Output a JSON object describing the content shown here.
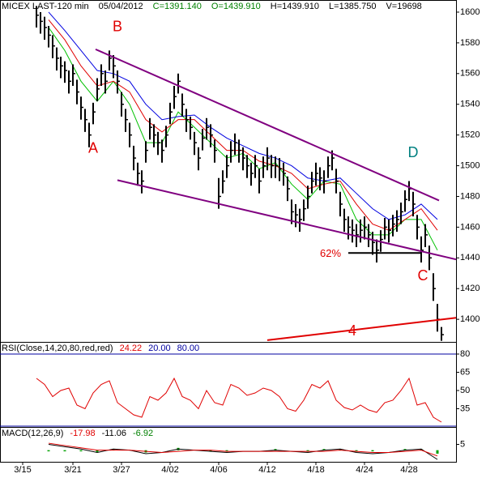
{
  "header": [
    {
      "text": "MICEX LAST-120 min",
      "color": "#000000"
    },
    {
      "text": "05/04/2012",
      "color": "#000000"
    },
    {
      "text": "C=1391.140",
      "color": "#008000"
    },
    {
      "text": "O=1439.910",
      "color": "#008000"
    },
    {
      "text": "H=1439.910",
      "color": "#000000"
    },
    {
      "text": "L=1385.750",
      "color": "#000000"
    },
    {
      "text": "V=19698",
      "color": "#000000"
    }
  ],
  "chart_data": [
    {
      "type": "hlc",
      "xlim": [
        0,
        112.6
      ],
      "ylim": [
        1385.3,
        1607.9
      ],
      "yticks": [
        1400,
        1420,
        1440,
        1460,
        1480,
        1500,
        1520,
        1540,
        1560,
        1580,
        1600
      ],
      "bar_color": "#000000",
      "x": [
        9,
        10,
        11,
        12,
        13,
        14,
        15,
        16,
        17,
        18,
        19,
        20,
        21,
        22,
        23,
        24,
        25,
        26,
        27,
        28,
        29,
        30,
        31,
        32,
        33,
        34,
        35,
        36,
        37,
        38,
        39,
        40,
        41,
        42,
        43,
        44,
        45,
        46,
        47,
        48,
        49,
        50,
        51,
        52,
        53,
        54,
        55,
        56,
        57,
        58,
        59,
        60,
        61,
        62,
        63,
        64,
        65,
        66,
        67,
        68,
        69,
        70,
        71,
        72,
        73,
        74,
        75,
        76,
        77,
        78,
        79,
        80,
        81,
        82,
        83,
        84,
        85,
        86,
        87,
        88,
        89,
        90,
        91,
        92,
        93,
        94,
        95,
        96,
        97,
        98,
        99,
        100,
        101,
        102,
        103,
        104,
        105,
        106,
        107,
        108,
        109
      ],
      "high": [
        1604,
        1600,
        1597,
        1591,
        1585,
        1577,
        1571,
        1568,
        1562,
        1566,
        1556,
        1545,
        1537,
        1528,
        1541,
        1557,
        1566,
        1562,
        1575,
        1572,
        1562,
        1548,
        1537,
        1528,
        1513,
        1502,
        1497,
        1516,
        1531,
        1527,
        1522,
        1517,
        1526,
        1541,
        1552,
        1560,
        1547,
        1537,
        1532,
        1522,
        1512,
        1524,
        1531,
        1527,
        1517,
        1492,
        1497,
        1507,
        1516,
        1521,
        1517,
        1512,
        1507,
        1502,
        1507,
        1498,
        1506,
        1512,
        1507,
        1506,
        1505,
        1502,
        1493,
        1478,
        1475,
        1472,
        1478,
        1487,
        1496,
        1502,
        1499,
        1497,
        1506,
        1510,
        1498,
        1483,
        1472,
        1467,
        1465,
        1462,
        1465,
        1467,
        1462,
        1457,
        1452,
        1458,
        1466,
        1465,
        1468,
        1471,
        1476,
        1484,
        1490,
        1483,
        1468,
        1454,
        1462,
        1448,
        1430,
        1410,
        1395
      ],
      "low": [
        1590,
        1586,
        1582,
        1577,
        1570,
        1562,
        1557,
        1554,
        1547,
        1552,
        1540,
        1530,
        1522,
        1512,
        1527,
        1542,
        1552,
        1547,
        1562,
        1557,
        1547,
        1532,
        1522,
        1512,
        1497,
        1487,
        1482,
        1502,
        1517,
        1512,
        1507,
        1502,
        1512,
        1527,
        1537,
        1547,
        1532,
        1522,
        1517,
        1507,
        1497,
        1510,
        1517,
        1512,
        1502,
        1472,
        1482,
        1492,
        1502,
        1507,
        1502,
        1497,
        1492,
        1487,
        1492,
        1482,
        1492,
        1497,
        1492,
        1492,
        1490,
        1487,
        1477,
        1462,
        1460,
        1457,
        1464,
        1472,
        1482,
        1487,
        1484,
        1482,
        1492,
        1497,
        1482,
        1467,
        1457,
        1452,
        1450,
        1447,
        1450,
        1452,
        1447,
        1442,
        1437,
        1444,
        1452,
        1450,
        1454,
        1457,
        1462,
        1470,
        1477,
        1467,
        1452,
        1437,
        1447,
        1432,
        1412,
        1392,
        1386
      ],
      "close": [
        1598,
        1594,
        1590,
        1585,
        1578,
        1570,
        1565,
        1562,
        1555,
        1560,
        1548,
        1538,
        1530,
        1520,
        1535,
        1550,
        1560,
        1555,
        1570,
        1565,
        1555,
        1540,
        1530,
        1520,
        1505,
        1495,
        1490,
        1510,
        1525,
        1520,
        1515,
        1510,
        1520,
        1535,
        1545,
        1555,
        1540,
        1530,
        1525,
        1515,
        1505,
        1518,
        1525,
        1520,
        1510,
        1480,
        1490,
        1500,
        1510,
        1515,
        1510,
        1505,
        1500,
        1495,
        1500,
        1490,
        1500,
        1505,
        1500,
        1500,
        1498,
        1495,
        1485,
        1470,
        1468,
        1465,
        1472,
        1480,
        1490,
        1495,
        1492,
        1490,
        1500,
        1505,
        1490,
        1475,
        1465,
        1460,
        1458,
        1455,
        1458,
        1460,
        1455,
        1450,
        1445,
        1452,
        1460,
        1458,
        1462,
        1465,
        1470,
        1478,
        1485,
        1475,
        1460,
        1445,
        1455,
        1440,
        1420,
        1400,
        1390
      ],
      "ma": [
        {
          "color": "#00c000",
          "x": [
            12,
            16,
            20,
            24,
            28,
            32,
            36,
            40,
            44,
            48,
            52,
            56,
            60,
            64,
            68,
            72,
            76,
            80,
            84,
            88,
            92,
            96,
            100,
            104,
            108
          ],
          "values": [
            1590,
            1575,
            1555,
            1542,
            1555,
            1540,
            1515,
            1515,
            1535,
            1525,
            1515,
            1505,
            1508,
            1498,
            1502,
            1488,
            1478,
            1490,
            1488,
            1465,
            1455,
            1455,
            1465,
            1465,
            1445
          ]
        },
        {
          "color": "#e00000",
          "x": [
            12,
            16,
            20,
            24,
            28,
            32,
            36,
            40,
            44,
            48,
            52,
            56,
            60,
            64,
            68,
            72,
            76,
            80,
            84,
            88,
            92,
            96,
            100,
            104,
            108
          ],
          "values": [
            1595,
            1582,
            1565,
            1552,
            1555,
            1548,
            1530,
            1522,
            1530,
            1530,
            1520,
            1510,
            1510,
            1503,
            1500,
            1495,
            1485,
            1488,
            1490,
            1475,
            1462,
            1458,
            1465,
            1472,
            1458
          ]
        },
        {
          "color": "#0000e0",
          "x": [
            12,
            16,
            20,
            24,
            28,
            32,
            36,
            40,
            44,
            48,
            52,
            56,
            60,
            64,
            68,
            72,
            76,
            80,
            84,
            88,
            92,
            96,
            100,
            104,
            108
          ],
          "values": [
            1600,
            1588,
            1575,
            1562,
            1560,
            1555,
            1540,
            1530,
            1532,
            1533,
            1525,
            1518,
            1513,
            1508,
            1505,
            1500,
            1492,
            1490,
            1492,
            1482,
            1472,
            1465,
            1468,
            1475,
            1465
          ]
        }
      ],
      "trendlines": [
        {
          "color": "#800080",
          "x": [
            23.6,
            108.4
          ],
          "y": [
            1575.8,
            1477.4
          ]
        },
        {
          "color": "#800080",
          "x": [
            29,
            112.6
          ],
          "y": [
            1490.6,
            1439
          ]
        },
        {
          "color": "#e00000",
          "x": [
            66,
            112.6
          ],
          "y": [
            1386.4,
            1401
          ]
        },
        {
          "color": "#000000",
          "x": [
            86,
            104
          ],
          "y": [
            1443.2,
            1443.2
          ]
        }
      ],
      "annotations": [
        {
          "text": "B",
          "x": 29,
          "y": 1590,
          "color": "#e00000",
          "size": 18
        },
        {
          "text": "A",
          "x": 23,
          "y": 1511,
          "color": "#e00000",
          "size": 18
        },
        {
          "text": "D",
          "x": 102,
          "y": 1508,
          "color": "#008080",
          "size": 18
        },
        {
          "text": "C",
          "x": 104.4,
          "y": 1428,
          "color": "#e00000",
          "size": 18
        },
        {
          "text": "4",
          "x": 87,
          "y": 1392,
          "color": "#e00000",
          "size": 18
        },
        {
          "text": "62%",
          "x": 81.6,
          "y": 1442.6,
          "color": "#e00000",
          "size": 13
        }
      ]
    },
    {
      "type": "line",
      "title": [
        {
          "text": "RSI(Close,14,20,80,red,red)",
          "color": "#000000"
        },
        {
          "text": "24.22",
          "color": "#e00000"
        },
        {
          "text": "20.00",
          "color": "#0000a0"
        },
        {
          "text": "80.00",
          "color": "#0000a0"
        }
      ],
      "xlim": [
        0,
        112.6
      ],
      "ylim": [
        20,
        90
      ],
      "yticks": [
        35,
        50,
        65,
        80
      ],
      "levels": [
        80,
        20
      ],
      "level_color": "#0000a0",
      "series": [
        {
          "color": "#e00000",
          "x": [
            9,
            11,
            13,
            15,
            17,
            19,
            21,
            23,
            25,
            27,
            29,
            31,
            33,
            35,
            37,
            39,
            41,
            43,
            45,
            47,
            49,
            51,
            53,
            55,
            57,
            59,
            61,
            63,
            65,
            67,
            69,
            71,
            73,
            75,
            77,
            79,
            81,
            83,
            85,
            87,
            89,
            91,
            93,
            95,
            97,
            99,
            101,
            103,
            105,
            107,
            109
          ],
          "values": [
            60,
            55,
            45,
            50,
            52,
            38,
            35,
            48,
            55,
            58,
            40,
            35,
            30,
            28,
            45,
            42,
            48,
            60,
            45,
            42,
            35,
            50,
            40,
            38,
            55,
            52,
            46,
            48,
            52,
            50,
            45,
            35,
            33,
            42,
            55,
            52,
            58,
            42,
            36,
            34,
            38,
            34,
            32,
            40,
            42,
            50,
            60,
            38,
            40,
            28,
            24
          ]
        }
      ]
    },
    {
      "type": "macd",
      "title": [
        {
          "text": "MACD(12,26,9)",
          "color": "#000000"
        },
        {
          "text": "-17.98",
          "color": "#e00000"
        },
        {
          "text": "-11.06",
          "color": "#000000"
        },
        {
          "text": "-6.92",
          "color": "#008000"
        }
      ],
      "xlim": [
        0,
        112.6
      ],
      "ylim": [
        -10,
        20
      ],
      "yticks": [
        5
      ],
      "xticks": [
        {
          "value": 5.6,
          "label": "3/15"
        },
        {
          "value": 18,
          "label": "3/21"
        },
        {
          "value": 30,
          "label": "3/27"
        },
        {
          "value": 42,
          "label": "4/02"
        },
        {
          "value": 54,
          "label": "4/06"
        },
        {
          "value": 66,
          "label": "4/12"
        },
        {
          "value": 78,
          "label": "4/18"
        },
        {
          "value": 90,
          "label": "4/24"
        },
        {
          "value": 101,
          "label": "4/28"
        }
      ],
      "x": [
        12,
        16,
        20,
        24,
        28,
        32,
        36,
        40,
        44,
        48,
        52,
        56,
        60,
        64,
        68,
        72,
        76,
        80,
        84,
        88,
        92,
        96,
        100,
        104,
        108
      ],
      "histogram": {
        "color": "#00a000",
        "values": [
          -1,
          -1,
          -1,
          -2,
          1,
          0,
          -2,
          0,
          2,
          0,
          -1,
          -1,
          0,
          0,
          1,
          0,
          -1,
          1,
          1,
          -1,
          -1,
          0,
          1,
          1,
          -3
        ]
      },
      "series": [
        {
          "color": "#000000",
          "values": [
            5,
            3,
            1,
            -2,
            1,
            0,
            -3,
            -2,
            1,
            0,
            -1,
            -2,
            -1,
            -1,
            0,
            -1,
            -2,
            0,
            1,
            -2,
            -3,
            -2,
            0,
            1,
            -8
          ]
        },
        {
          "color": "#e00000",
          "values": [
            6,
            4,
            2,
            0,
            0,
            0,
            -1,
            -2,
            -1,
            0,
            0,
            -1,
            -1,
            -1,
            -1,
            -1,
            -1,
            -1,
            0,
            -1,
            -2,
            -2,
            -1,
            0,
            -5
          ]
        }
      ]
    }
  ]
}
